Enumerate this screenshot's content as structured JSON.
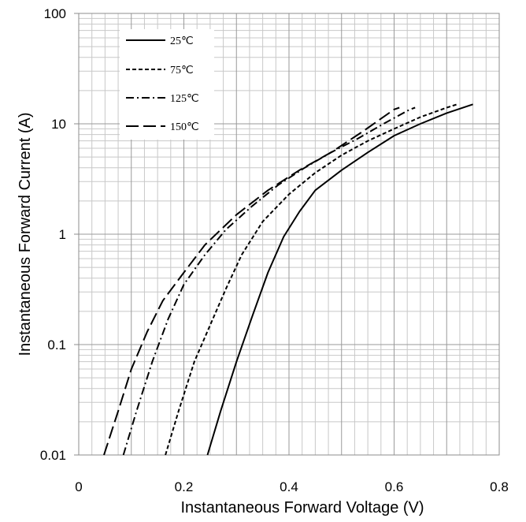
{
  "chart_data": {
    "type": "line",
    "title": "",
    "xlabel": "Instantaneous Forward Voltage (V)",
    "ylabel": "Instantaneous Forward Current (A)",
    "xscale": "linear",
    "yscale": "log",
    "xlim": [
      0,
      0.8
    ],
    "ylim": [
      0.01,
      100
    ],
    "x_ticks": [
      0,
      0.2,
      0.4,
      0.6,
      0.8
    ],
    "x_tick_labels": [
      "0",
      "0.2",
      "0.4",
      "0.6",
      "0.8"
    ],
    "y_ticks": [
      0.01,
      0.1,
      1,
      10,
      100
    ],
    "y_tick_labels": [
      "0.01",
      "0.1",
      "1",
      "10",
      "100"
    ],
    "grid": "major and minor",
    "legend_position": "top-left",
    "series": [
      {
        "name": "25℃",
        "dash": "solid",
        "points": [
          [
            0.245,
            0.01
          ],
          [
            0.27,
            0.025
          ],
          [
            0.3,
            0.07
          ],
          [
            0.33,
            0.18
          ],
          [
            0.36,
            0.45
          ],
          [
            0.39,
            0.95
          ],
          [
            0.42,
            1.6
          ],
          [
            0.45,
            2.5
          ],
          [
            0.5,
            3.8
          ],
          [
            0.55,
            5.5
          ],
          [
            0.6,
            7.8
          ],
          [
            0.65,
            10.0
          ],
          [
            0.7,
            12.5
          ],
          [
            0.75,
            15.0
          ]
        ]
      },
      {
        "name": "75℃",
        "dash": "short-dash",
        "points": [
          [
            0.165,
            0.01
          ],
          [
            0.19,
            0.025
          ],
          [
            0.22,
            0.07
          ],
          [
            0.25,
            0.15
          ],
          [
            0.28,
            0.32
          ],
          [
            0.31,
            0.65
          ],
          [
            0.35,
            1.3
          ],
          [
            0.4,
            2.3
          ],
          [
            0.45,
            3.6
          ],
          [
            0.5,
            5.2
          ],
          [
            0.55,
            7.0
          ],
          [
            0.6,
            9.0
          ],
          [
            0.65,
            11.5
          ],
          [
            0.7,
            14.0
          ],
          [
            0.72,
            15.0
          ]
        ]
      },
      {
        "name": "125℃",
        "dash": "dash-dot",
        "points": [
          [
            0.085,
            0.01
          ],
          [
            0.11,
            0.025
          ],
          [
            0.14,
            0.07
          ],
          [
            0.17,
            0.17
          ],
          [
            0.2,
            0.35
          ],
          [
            0.24,
            0.65
          ],
          [
            0.28,
            1.1
          ],
          [
            0.33,
            1.8
          ],
          [
            0.38,
            2.8
          ],
          [
            0.43,
            4.0
          ],
          [
            0.48,
            5.5
          ],
          [
            0.53,
            7.3
          ],
          [
            0.58,
            10.0
          ],
          [
            0.63,
            13.5
          ],
          [
            0.64,
            14.0
          ]
        ]
      },
      {
        "name": "150℃",
        "dash": "long-dash",
        "points": [
          [
            0.048,
            0.01
          ],
          [
            0.075,
            0.025
          ],
          [
            0.1,
            0.06
          ],
          [
            0.13,
            0.13
          ],
          [
            0.16,
            0.25
          ],
          [
            0.2,
            0.45
          ],
          [
            0.24,
            0.8
          ],
          [
            0.3,
            1.5
          ],
          [
            0.36,
            2.5
          ],
          [
            0.42,
            3.8
          ],
          [
            0.48,
            5.5
          ],
          [
            0.54,
            8.5
          ],
          [
            0.6,
            13.5
          ],
          [
            0.61,
            14.0
          ]
        ]
      }
    ]
  }
}
